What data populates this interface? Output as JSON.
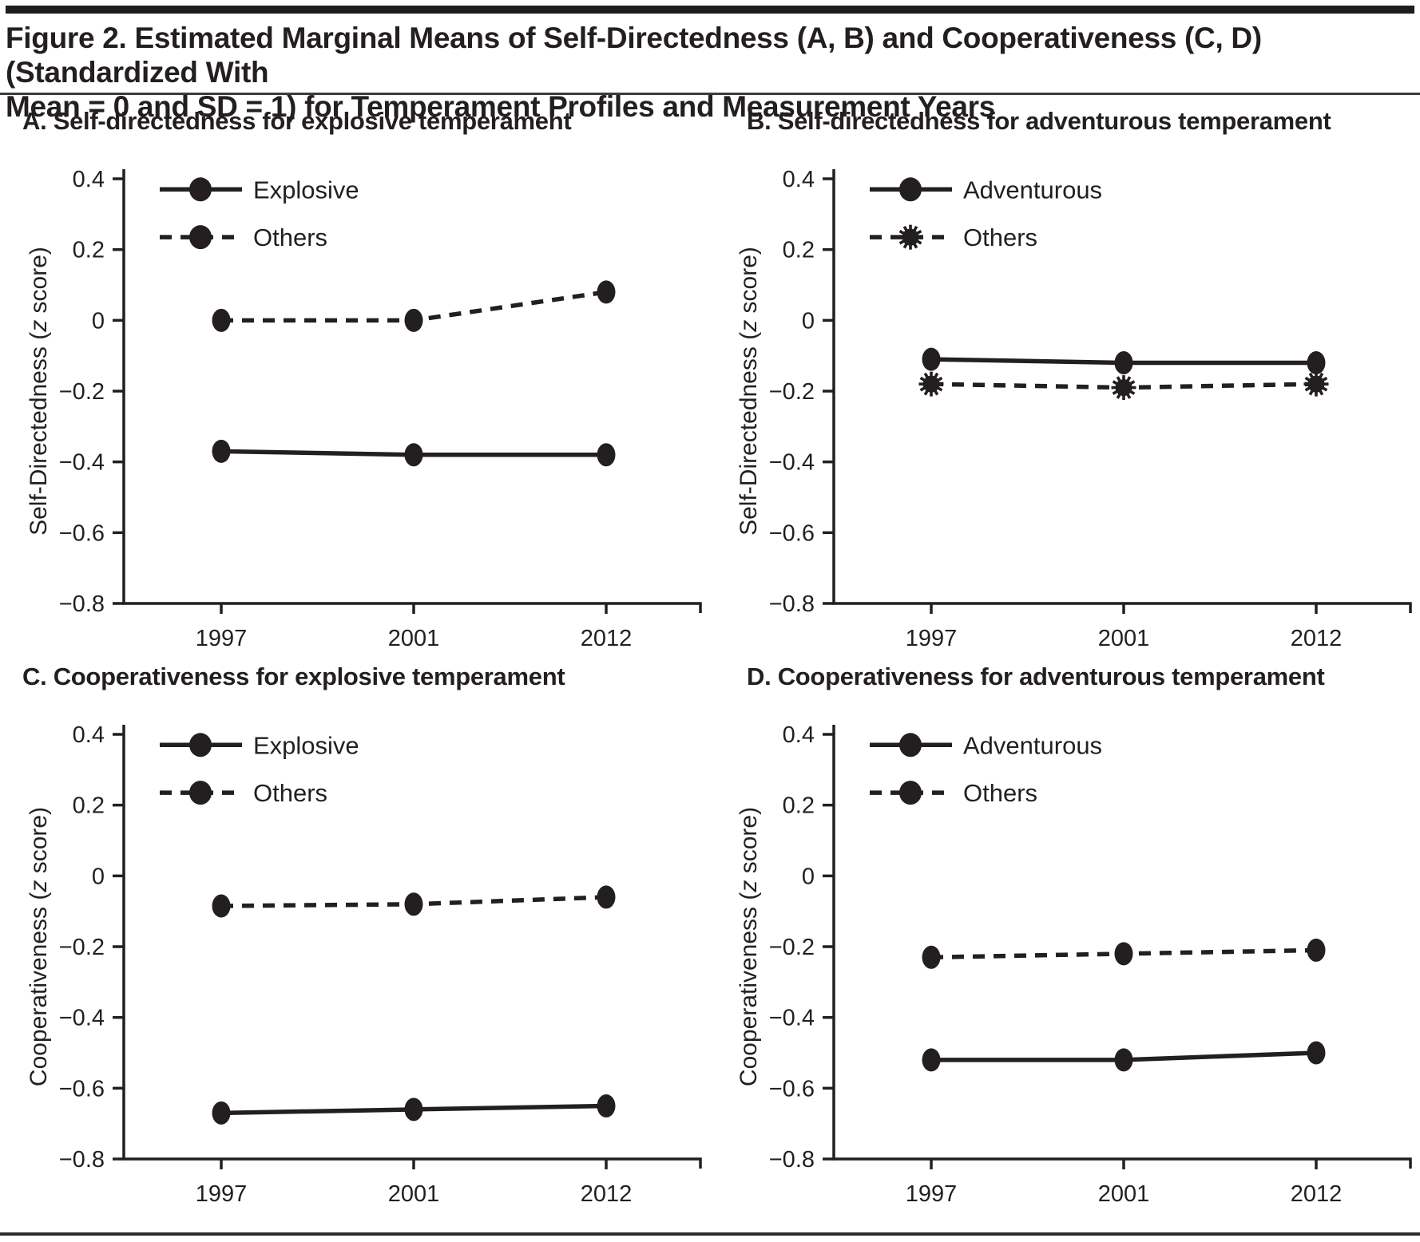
{
  "figure": {
    "title": "Figure 2. Estimated Marginal Means of Self-Directedness (A, B) and Cooperativeness (C, D) (Standardized With\nMean = 0 and SD = 1) for Temperament Profiles and Measurement Years",
    "ink_color": "#231f20"
  },
  "chart_data": [
    {
      "id": "A",
      "type": "line",
      "title": "A. Self-directedness for explosive temperament",
      "xlabel": "",
      "ylabel": "Self-Directedness (z score)",
      "categories": [
        "1997",
        "2001",
        "2012"
      ],
      "ylim": [
        -0.8,
        0.4
      ],
      "yticks": [
        0.4,
        0.2,
        0,
        -0.2,
        -0.4,
        -0.6,
        -0.8
      ],
      "grid": false,
      "legend_position": "top-left-inside",
      "series": [
        {
          "name": "Explosive",
          "line": "solid",
          "marker": "circle",
          "values": [
            -0.37,
            -0.38,
            -0.38
          ]
        },
        {
          "name": "Others",
          "line": "dashed",
          "marker": "circle",
          "values": [
            0.0,
            0.0,
            0.08
          ]
        }
      ]
    },
    {
      "id": "B",
      "type": "line",
      "title": "B. Self-directedness for adventurous temperament",
      "xlabel": "",
      "ylabel": "Self-Directedness (z score)",
      "categories": [
        "1997",
        "2001",
        "2012"
      ],
      "ylim": [
        -0.8,
        0.4
      ],
      "yticks": [
        0.4,
        0.2,
        0,
        -0.2,
        -0.4,
        -0.6,
        -0.8
      ],
      "grid": false,
      "legend_position": "top-left-inside",
      "series": [
        {
          "name": "Adventurous",
          "line": "solid",
          "marker": "circle",
          "values": [
            -0.11,
            -0.12,
            -0.12
          ]
        },
        {
          "name": "Others",
          "line": "dashed",
          "marker": "burst",
          "values": [
            -0.18,
            -0.19,
            -0.18
          ]
        }
      ]
    },
    {
      "id": "C",
      "type": "line",
      "title": "C. Cooperativeness for explosive temperament",
      "xlabel": "",
      "ylabel": "Cooperativeness (z score)",
      "categories": [
        "1997",
        "2001",
        "2012"
      ],
      "ylim": [
        -0.8,
        0.4
      ],
      "yticks": [
        0.4,
        0.2,
        0,
        -0.2,
        -0.4,
        -0.6,
        -0.8
      ],
      "grid": false,
      "legend_position": "top-left-inside",
      "series": [
        {
          "name": "Explosive",
          "line": "solid",
          "marker": "circle",
          "values": [
            -0.67,
            -0.66,
            -0.65
          ]
        },
        {
          "name": "Others",
          "line": "dashed",
          "marker": "circle",
          "values": [
            -0.085,
            -0.08,
            -0.06
          ]
        }
      ]
    },
    {
      "id": "D",
      "type": "line",
      "title": "D. Cooperativeness for adventurous temperament",
      "xlabel": "",
      "ylabel": "Cooperativeness (z score)",
      "categories": [
        "1997",
        "2001",
        "2012"
      ],
      "ylim": [
        -0.8,
        0.4
      ],
      "yticks": [
        0.4,
        0.2,
        0,
        -0.2,
        -0.4,
        -0.6,
        -0.8
      ],
      "grid": false,
      "legend_position": "top-left-inside",
      "series": [
        {
          "name": "Adventurous",
          "line": "solid",
          "marker": "circle",
          "values": [
            -0.52,
            -0.52,
            -0.5
          ]
        },
        {
          "name": "Others",
          "line": "dashed",
          "marker": "circle",
          "values": [
            -0.23,
            -0.22,
            -0.21
          ]
        }
      ]
    }
  ]
}
